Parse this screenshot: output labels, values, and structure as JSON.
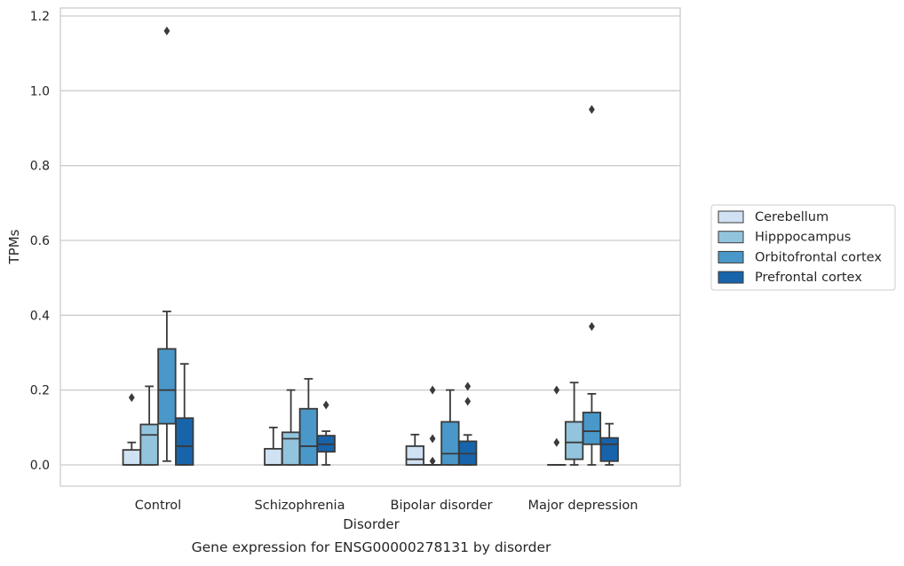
{
  "chart_data": {
    "type": "box",
    "title": "",
    "caption": "Gene expression for ENSG00000278131 by disorder",
    "xlabel": "Disorder",
    "ylabel": "TPMs",
    "ylim": [
      -0.055,
      1.225
    ],
    "yticks": [
      0.0,
      0.2,
      0.4,
      0.6,
      0.8,
      1.0,
      1.2
    ],
    "ytick_labels": [
      "0.0",
      "0.2",
      "0.4",
      "0.6",
      "0.8",
      "1.0",
      "1.2"
    ],
    "grid": "horizontal",
    "legend_position": "right, outside plot",
    "categories": [
      "Control",
      "Schizophrenia",
      "Bipolar disorder",
      "Major depression"
    ],
    "colors": {
      "Cerebellum": "#cfe1f2",
      "Hipppocampus": "#93c4de",
      "Orbitofrontal cortex": "#4a98c9",
      "Prefrontal cortex": "#1764ab",
      "box_edge": "#3a3a3a",
      "grid": "#cccccc"
    },
    "series": [
      {
        "name": "Cerebellum",
        "boxes": [
          {
            "whisker_low": 0.0,
            "q1": 0.0,
            "median": 0.0,
            "q3": 0.04,
            "whisker_high": 0.06,
            "outliers": [
              0.18
            ]
          },
          {
            "whisker_low": 0.0,
            "q1": 0.0,
            "median": 0.0,
            "q3": 0.043,
            "whisker_high": 0.1,
            "outliers": []
          },
          {
            "whisker_low": 0.0,
            "q1": 0.0,
            "median": 0.015,
            "q3": 0.05,
            "whisker_high": 0.081,
            "outliers": []
          },
          {
            "whisker_low": 0.0,
            "q1": 0.0,
            "median": 0.0,
            "q3": 0.0,
            "whisker_high": 0.0,
            "outliers": [
              0.06,
              0.2
            ]
          }
        ]
      },
      {
        "name": "Hipppocampus",
        "boxes": [
          {
            "whisker_low": 0.0,
            "q1": 0.0,
            "median": 0.08,
            "q3": 0.108,
            "whisker_high": 0.21,
            "outliers": []
          },
          {
            "whisker_low": 0.0,
            "q1": 0.0,
            "median": 0.07,
            "q3": 0.087,
            "whisker_high": 0.2,
            "outliers": []
          },
          {
            "whisker_low": 0.0,
            "q1": 0.0,
            "median": 0.0,
            "q3": 0.0,
            "whisker_high": 0.0,
            "outliers": [
              0.01,
              0.07,
              0.2
            ]
          },
          {
            "whisker_low": 0.0,
            "q1": 0.015,
            "median": 0.06,
            "q3": 0.115,
            "whisker_high": 0.22,
            "outliers": []
          }
        ]
      },
      {
        "name": "Orbitofrontal cortex",
        "boxes": [
          {
            "whisker_low": 0.01,
            "q1": 0.11,
            "median": 0.2,
            "q3": 0.31,
            "whisker_high": 0.41,
            "outliers": [
              1.16
            ]
          },
          {
            "whisker_low": 0.0,
            "q1": 0.0,
            "median": 0.05,
            "q3": 0.15,
            "whisker_high": 0.23,
            "outliers": []
          },
          {
            "whisker_low": 0.0,
            "q1": 0.0,
            "median": 0.03,
            "q3": 0.115,
            "whisker_high": 0.2,
            "outliers": []
          },
          {
            "whisker_low": 0.0,
            "q1": 0.055,
            "median": 0.09,
            "q3": 0.14,
            "whisker_high": 0.19,
            "outliers": [
              0.37,
              0.95
            ]
          }
        ]
      },
      {
        "name": "Prefrontal cortex",
        "boxes": [
          {
            "whisker_low": 0.0,
            "q1": 0.0,
            "median": 0.05,
            "q3": 0.125,
            "whisker_high": 0.27,
            "outliers": []
          },
          {
            "whisker_low": 0.0,
            "q1": 0.035,
            "median": 0.055,
            "q3": 0.078,
            "whisker_high": 0.09,
            "outliers": [
              0.16
            ]
          },
          {
            "whisker_low": 0.0,
            "q1": 0.0,
            "median": 0.03,
            "q3": 0.063,
            "whisker_high": 0.08,
            "outliers": [
              0.17,
              0.21
            ]
          },
          {
            "whisker_low": 0.0,
            "q1": 0.01,
            "median": 0.055,
            "q3": 0.072,
            "whisker_high": 0.11,
            "outliers": []
          }
        ]
      }
    ]
  }
}
